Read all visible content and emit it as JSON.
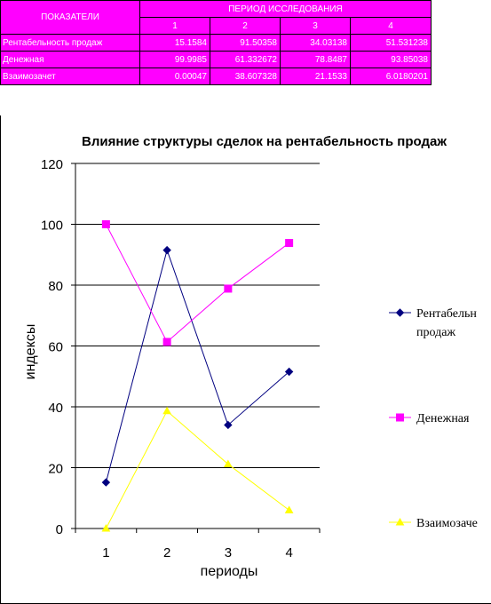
{
  "table": {
    "header_label": "ПОКАЗАТЕЛИ",
    "header_group": "ПЕРИОД ИССЛЕДОВАНИЯ",
    "periods": [
      "1",
      "2",
      "3",
      "4"
    ],
    "rows": [
      {
        "label": "Рентабельность продаж",
        "values": [
          "15.1584",
          "91.50358",
          "34.03138",
          "51.531238"
        ]
      },
      {
        "label": "Денежная",
        "values": [
          "99.9985",
          "61.332672",
          "78.8487",
          "93.85038"
        ]
      },
      {
        "label": "Взаимозачет",
        "values": [
          "0.00047",
          "38.607328",
          "21.1533",
          "6.0180201"
        ]
      }
    ]
  },
  "chart_data": {
    "type": "line",
    "title": "Влияние структуры сделок на рентабельность продаж",
    "xlabel": "периоды",
    "ylabel": "индексы",
    "categories": [
      "1",
      "2",
      "3",
      "4"
    ],
    "ylim": [
      0,
      120
    ],
    "yticks": [
      "0",
      "20",
      "40",
      "60",
      "80",
      "100",
      "120"
    ],
    "grid": true,
    "legend_position": "right",
    "series": [
      {
        "name": "Рентабельность продаж",
        "legend_lines": [
          "Рентабельн",
          "продаж"
        ],
        "values": [
          15.16,
          91.5,
          34.03,
          51.53
        ],
        "color": "#000080",
        "marker": "diamond"
      },
      {
        "name": "Денежная",
        "legend_lines": [
          "Денежная"
        ],
        "values": [
          100.0,
          61.33,
          78.85,
          93.85
        ],
        "color": "#ff00ff",
        "marker": "square"
      },
      {
        "name": "Взаимозачет",
        "legend_lines": [
          "Взаимозаче"
        ],
        "values": [
          0.0,
          38.61,
          21.15,
          6.02
        ],
        "color": "#ffff00",
        "marker": "triangle"
      }
    ]
  }
}
